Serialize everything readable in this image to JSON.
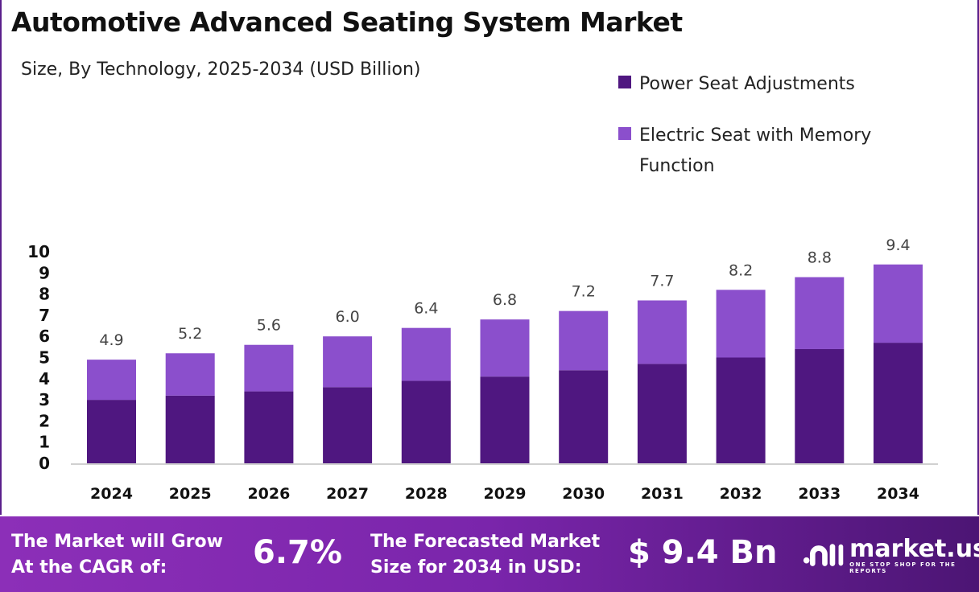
{
  "chart_data": {
    "type": "bar",
    "stacked": true,
    "title": "Automotive Advanced Seating System Market",
    "subtitle": "Size, By Technology, 2025-2034 (USD Billion)",
    "categories": [
      "2024",
      "2025",
      "2026",
      "2027",
      "2028",
      "2029",
      "2030",
      "2031",
      "2032",
      "2033",
      "2034"
    ],
    "series": [
      {
        "name": "Power Seat Adjustments",
        "color": "#4f1780",
        "values": [
          3.0,
          3.2,
          3.4,
          3.6,
          3.9,
          4.1,
          4.4,
          4.7,
          5.0,
          5.4,
          5.7
        ]
      },
      {
        "name": "Electric Seat with Memory Function",
        "color": "#8b4fcc",
        "values": [
          1.9,
          2.0,
          2.2,
          2.4,
          2.5,
          2.7,
          2.8,
          3.0,
          3.2,
          3.4,
          3.7
        ]
      }
    ],
    "totals": [
      "4.9",
      "5.2",
      "5.6",
      "6.0",
      "6.4",
      "6.8",
      "7.2",
      "7.7",
      "8.2",
      "8.8",
      "9.4"
    ],
    "yticks": [
      "0",
      "1",
      "2",
      "3",
      "4",
      "5",
      "6",
      "7",
      "8",
      "9",
      "10"
    ],
    "ylim": [
      0,
      10
    ],
    "grid": false,
    "legend": "top-right"
  },
  "footer": {
    "cagr_label": "The Market will Grow At the CAGR of:",
    "cagr_value": "6.7%",
    "forecast_label": "The Forecasted Market Size for 2034 in USD:",
    "forecast_value": "$ 9.4 Bn",
    "brand": "market.us",
    "tagline": "ONE STOP SHOP FOR THE REPORTS"
  }
}
